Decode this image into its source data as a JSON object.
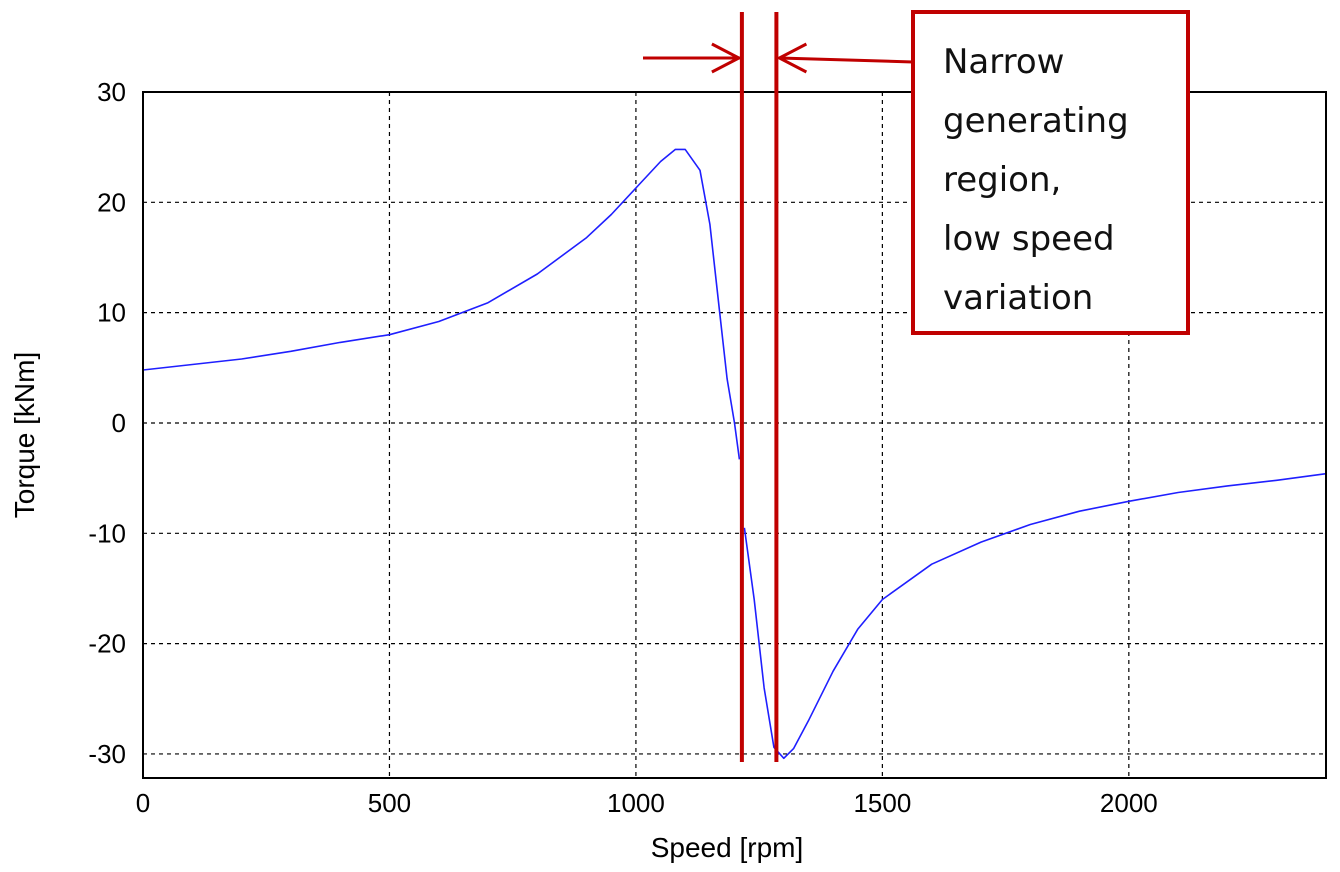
{
  "chart_data": {
    "type": "line",
    "title": "",
    "xlabel": "Speed [rpm]",
    "ylabel": "Torque [kNm]",
    "xlim": [
      0,
      2400
    ],
    "ylim": [
      -32,
      30
    ],
    "xticks": [
      0,
      500,
      1000,
      1500,
      2000
    ],
    "yticks": [
      30,
      20,
      10,
      0,
      -10,
      -20,
      -30
    ],
    "xtick_labels": [
      "0",
      "500",
      "1000",
      "1500",
      "2000"
    ],
    "ytick_labels": [
      "30",
      "20",
      "10",
      "0",
      "-10",
      "-20",
      "-30"
    ],
    "grid": true,
    "colors": {
      "series": "#1f1fff",
      "annotation": "#c00000"
    },
    "series": [
      {
        "x": [
          0,
          100,
          200,
          300,
          400,
          500,
          600,
          700,
          800,
          900,
          950,
          1000,
          1050,
          1080,
          1100,
          1130,
          1150,
          1170,
          1185,
          1200,
          1210,
          1215,
          1220,
          1240,
          1260,
          1280,
          1300,
          1320,
          1350,
          1400,
          1450,
          1500,
          1600,
          1700,
          1800,
          1900,
          2000,
          2100,
          2200,
          2300,
          2400
        ],
        "y": [
          4.8,
          5.3,
          5.8,
          6.5,
          7.3,
          8.0,
          9.2,
          10.9,
          13.5,
          16.8,
          18.9,
          21.3,
          23.7,
          24.8,
          24.8,
          22.9,
          18.0,
          10.0,
          4.0,
          0.0,
          -3.3,
          null,
          -9.5,
          -16.0,
          -24.0,
          -29.4,
          -30.4,
          -29.5,
          -27.0,
          -22.5,
          -18.7,
          -16.0,
          -12.8,
          -10.8,
          -9.2,
          -8.0,
          -7.1,
          -6.3,
          -5.7,
          -5.2,
          -4.6
        ]
      }
    ],
    "annotations": [
      {
        "text_lines": [
          "Narrow",
          "generating",
          "region,",
          "low speed",
          "variation"
        ],
        "region_x": [
          1215,
          1285
        ]
      }
    ]
  }
}
